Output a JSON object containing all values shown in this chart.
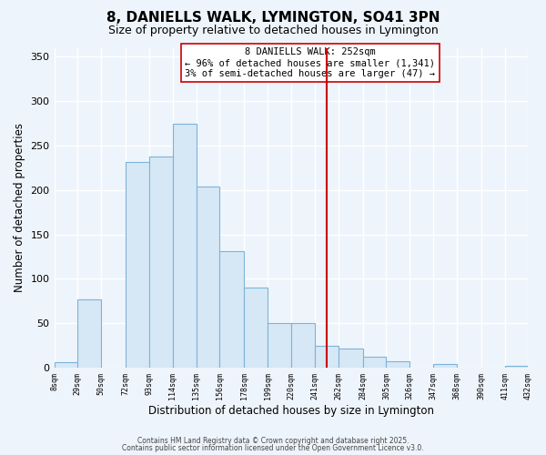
{
  "title": "8, DANIELLS WALK, LYMINGTON, SO41 3PN",
  "subtitle": "Size of property relative to detached houses in Lymington",
  "xlabel": "Distribution of detached houses by size in Lymington",
  "ylabel": "Number of detached properties",
  "bar_left_edges": [
    8,
    29,
    50,
    72,
    93,
    114,
    135,
    156,
    178,
    199,
    220,
    241,
    262,
    284,
    305,
    326,
    347,
    368,
    390,
    411
  ],
  "bar_heights": [
    6,
    77,
    0,
    231,
    238,
    275,
    204,
    131,
    90,
    50,
    50,
    25,
    22,
    12,
    7,
    0,
    4,
    0,
    0,
    2
  ],
  "bar_widths": [
    21,
    21,
    22,
    21,
    21,
    21,
    21,
    22,
    21,
    21,
    21,
    21,
    22,
    21,
    21,
    21,
    21,
    22,
    21,
    21
  ],
  "last_edge": 432,
  "tick_labels": [
    "8sqm",
    "29sqm",
    "50sqm",
    "72sqm",
    "93sqm",
    "114sqm",
    "135sqm",
    "156sqm",
    "178sqm",
    "199sqm",
    "220sqm",
    "241sqm",
    "262sqm",
    "284sqm",
    "305sqm",
    "326sqm",
    "347sqm",
    "368sqm",
    "390sqm",
    "411sqm",
    "432sqm"
  ],
  "bar_color": "#d6e8f5",
  "bar_edge_color": "#7db3d8",
  "vline_x": 252,
  "vline_color": "#cc0000",
  "annotation_title": "8 DANIELLS WALK: 252sqm",
  "annotation_line1": "← 96% of detached houses are smaller (1,341)",
  "annotation_line2": "3% of semi-detached houses are larger (47) →",
  "ylim": [
    0,
    360
  ],
  "yticks": [
    0,
    50,
    100,
    150,
    200,
    250,
    300,
    350
  ],
  "background_color": "#eef4fb",
  "grid_color": "#ffffff",
  "footer1": "Contains HM Land Registry data © Crown copyright and database right 2025.",
  "footer2": "Contains public sector information licensed under the Open Government Licence v3.0."
}
